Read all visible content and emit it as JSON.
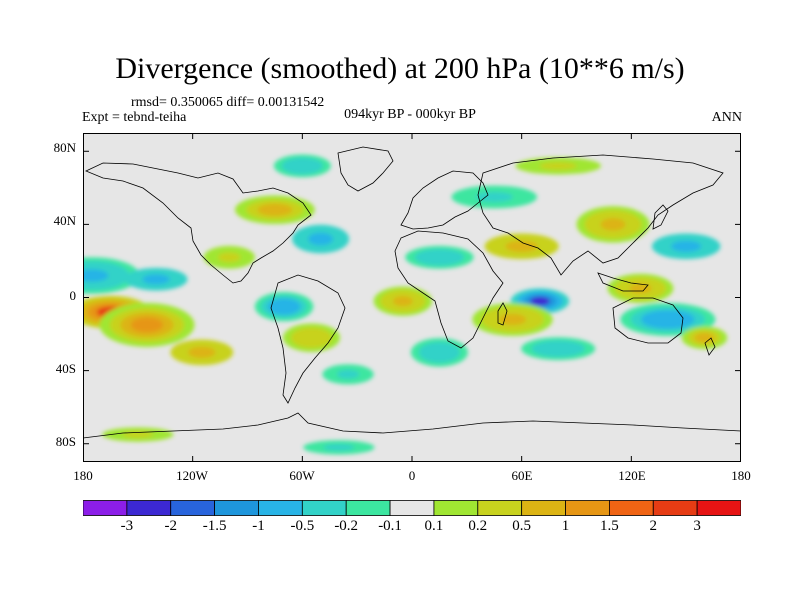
{
  "title": "Divergence (smoothed) at 200 hPa (10**6 m/s)",
  "stats_line": "rmsd= 0.350065 diff= 0.00131542",
  "experiment": "Expt = tebnd-teiha",
  "period": "094kyr BP - 000kyr BP",
  "season": "ANN",
  "y_axis": {
    "ticks": [
      {
        "label": "80N",
        "lat": 80
      },
      {
        "label": "40N",
        "lat": 40
      },
      {
        "label": "0",
        "lat": 0
      },
      {
        "label": "40S",
        "lat": -40
      },
      {
        "label": "80S",
        "lat": -80
      }
    ]
  },
  "x_axis": {
    "ticks": [
      {
        "label": "180",
        "lon": -180
      },
      {
        "label": "120W",
        "lon": -120
      },
      {
        "label": "60W",
        "lon": -60
      },
      {
        "label": "0",
        "lon": 0
      },
      {
        "label": "60E",
        "lon": 60
      },
      {
        "label": "120E",
        "lon": 120
      },
      {
        "label": "180",
        "lon": 180
      }
    ]
  },
  "colorbar": {
    "colors": [
      "#8c1ee8",
      "#3c28d2",
      "#2864dc",
      "#1e96dc",
      "#28b4e6",
      "#32d2c8",
      "#3ce6a0",
      "#e6e6e6",
      "#a0e632",
      "#c8d21e",
      "#dcb414",
      "#e69614",
      "#f06414",
      "#e63c14",
      "#e61414"
    ],
    "labels": [
      "-3",
      "-2",
      "-1.5",
      "-1",
      "-0.5",
      "-0.2",
      "-0.1",
      "0.1",
      "0.2",
      "0.5",
      "1",
      "1.5",
      "2",
      "3"
    ]
  },
  "background_color": "#e6e6e6",
  "anomalies": [
    {
      "lon": -165,
      "lat": -8,
      "rx": 22,
      "ry": 9,
      "v": 2.0
    },
    {
      "lon": -145,
      "lat": -15,
      "rx": 26,
      "ry": 12,
      "v": 1.0
    },
    {
      "lon": -115,
      "lat": -30,
      "rx": 22,
      "ry": 9,
      "v": 0.6
    },
    {
      "lon": -175,
      "lat": 12,
      "rx": 26,
      "ry": 10,
      "v": -0.8
    },
    {
      "lon": -140,
      "lat": 10,
      "rx": 22,
      "ry": 8,
      "v": -0.6
    },
    {
      "lon": -100,
      "lat": 22,
      "rx": 18,
      "ry": 8,
      "v": 0.3
    },
    {
      "lon": -75,
      "lat": 48,
      "rx": 28,
      "ry": 10,
      "v": 0.5
    },
    {
      "lon": -60,
      "lat": 72,
      "rx": 20,
      "ry": 8,
      "v": -0.4
    },
    {
      "lon": -50,
      "lat": 32,
      "rx": 20,
      "ry": 10,
      "v": -0.6
    },
    {
      "lon": -70,
      "lat": -5,
      "rx": 16,
      "ry": 8,
      "v": -1.0
    },
    {
      "lon": -55,
      "lat": -22,
      "rx": 20,
      "ry": 10,
      "v": 0.4
    },
    {
      "lon": -35,
      "lat": -42,
      "rx": 18,
      "ry": 7,
      "v": -0.3
    },
    {
      "lon": -5,
      "lat": -2,
      "rx": 16,
      "ry": 8,
      "v": 0.7
    },
    {
      "lon": 15,
      "lat": 22,
      "rx": 24,
      "ry": 8,
      "v": -0.4
    },
    {
      "lon": 15,
      "lat": -30,
      "rx": 20,
      "ry": 10,
      "v": -0.5
    },
    {
      "lon": 45,
      "lat": 55,
      "rx": 30,
      "ry": 8,
      "v": -0.3
    },
    {
      "lon": 60,
      "lat": 28,
      "rx": 26,
      "ry": 9,
      "v": 0.6
    },
    {
      "lon": 70,
      "lat": -2,
      "rx": 16,
      "ry": 7,
      "v": -2.5
    },
    {
      "lon": 55,
      "lat": -12,
      "rx": 22,
      "ry": 9,
      "v": 0.8
    },
    {
      "lon": 80,
      "lat": -28,
      "rx": 26,
      "ry": 8,
      "v": -0.4
    },
    {
      "lon": 110,
      "lat": 40,
      "rx": 20,
      "ry": 10,
      "v": 0.8
    },
    {
      "lon": 150,
      "lat": 28,
      "rx": 24,
      "ry": 9,
      "v": -0.6
    },
    {
      "lon": 125,
      "lat": 5,
      "rx": 18,
      "ry": 8,
      "v": 0.7
    },
    {
      "lon": 140,
      "lat": -12,
      "rx": 26,
      "ry": 9,
      "v": -0.9
    },
    {
      "lon": 160,
      "lat": -22,
      "rx": 16,
      "ry": 8,
      "v": 0.5
    },
    {
      "lon": -150,
      "lat": -75,
      "rx": 25,
      "ry": 5,
      "v": 0.3
    },
    {
      "lon": -40,
      "lat": -82,
      "rx": 25,
      "ry": 5,
      "v": -0.3
    },
    {
      "lon": 80,
      "lat": 72,
      "rx": 30,
      "ry": 6,
      "v": 0.3
    }
  ]
}
